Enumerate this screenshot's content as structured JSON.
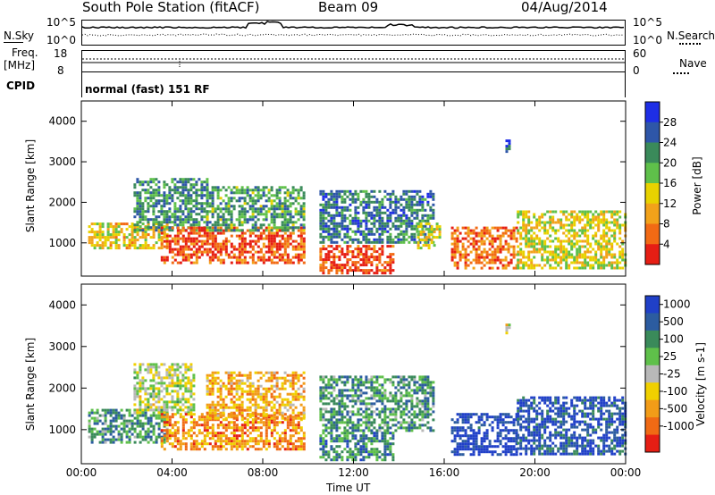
{
  "header": {
    "station": "South Pole Station (fitACF)",
    "beam": "Beam 09",
    "date": "04/Aug/2014"
  },
  "upper_panels": {
    "nsky_label": "N.Sky",
    "nsearch_label": "N.Search",
    "freq_label_1": "Freq.",
    "freq_label_2": "[MHz]",
    "nave_label": "Nave",
    "cpid_label": "CPID",
    "cpid_text": "normal (fast) 151 RF",
    "nsky_ticks": {
      "top": "10^5",
      "bottom": "10^0"
    },
    "nsearch_ticks": {
      "top": "10^5",
      "bottom": "10^0"
    },
    "freq_ticks": {
      "top": "18",
      "bottom": "8"
    },
    "nave_ticks": {
      "top": "60",
      "bottom": "0"
    }
  },
  "xaxis": {
    "title": "Time UT",
    "ticks": [
      "00:00",
      "04:00",
      "08:00",
      "12:00",
      "16:00",
      "20:00",
      "00:00"
    ]
  },
  "colors": {
    "power_scale": [
      "#1e2ee6",
      "#2e56a8",
      "#3a8a5a",
      "#5fc04a",
      "#e8d200",
      "#f2a21a",
      "#f26a14",
      "#e61e14"
    ],
    "velocity_scale": [
      "#2040c8",
      "#2c5ca0",
      "#3a8a5a",
      "#5fc04a",
      "#b8b8b8",
      "#f0d000",
      "#f29c18",
      "#f06a14",
      "#e61e14"
    ]
  },
  "chart_data": [
    {
      "type": "heatmap",
      "title": "",
      "xlabel": "Time UT",
      "ylabel": "Slant Range [km]",
      "xlim": [
        "00:00",
        "24:00"
      ],
      "ylim": [
        180,
        4500
      ],
      "yticks": [
        "1000",
        "2000",
        "3000",
        "4000"
      ],
      "colorbar": {
        "label": "Power [dB]",
        "ticks": [
          "4",
          "8",
          "12",
          "16",
          "20",
          "24",
          "28"
        ]
      },
      "regions": [
        {
          "t0": 0.3,
          "t1": 3.8,
          "r0": 900,
          "r1": 1500,
          "level": 0.6
        },
        {
          "t0": 2.3,
          "t1": 5.5,
          "r0": 1300,
          "r1": 2600,
          "level": 0.3
        },
        {
          "t0": 3.5,
          "t1": 9.8,
          "r0": 500,
          "r1": 1400,
          "level": 0.85
        },
        {
          "t0": 5.5,
          "t1": 9.8,
          "r0": 1300,
          "r1": 2400,
          "level": 0.35
        },
        {
          "t0": 10.5,
          "t1": 13.8,
          "r0": 250,
          "r1": 950,
          "level": 0.9
        },
        {
          "t0": 10.5,
          "t1": 15.5,
          "r0": 1000,
          "r1": 2300,
          "level": 0.25
        },
        {
          "t0": 14.8,
          "t1": 15.8,
          "r0": 900,
          "r1": 1500,
          "level": 0.55
        },
        {
          "t0": 16.3,
          "t1": 19.2,
          "r0": 400,
          "r1": 1400,
          "level": 0.8
        },
        {
          "t0": 19.2,
          "t1": 24.0,
          "r0": 400,
          "r1": 1800,
          "level": 0.55
        },
        {
          "t0": 18.7,
          "t1": 18.9,
          "r0": 3250,
          "r1": 3550,
          "level": 0.2
        }
      ]
    },
    {
      "type": "heatmap",
      "title": "",
      "xlabel": "Time UT",
      "ylabel": "Slant Range [km]",
      "xlim": [
        "00:00",
        "24:00"
      ],
      "ylim": [
        180,
        4500
      ],
      "yticks": [
        "1000",
        "2000",
        "3000",
        "4000"
      ],
      "colorbar": {
        "label": "Velocity [m s-1]",
        "ticks": [
          "1000",
          "500",
          "100",
          "25",
          "-25",
          "-100",
          "-500",
          "-1000"
        ]
      },
      "regions": [
        {
          "t0": 0.3,
          "t1": 3.8,
          "r0": 700,
          "r1": 1500,
          "level": 0.3
        },
        {
          "t0": 2.3,
          "t1": 5.0,
          "r0": 1400,
          "r1": 2600,
          "level": 0.5
        },
        {
          "t0": 3.5,
          "t1": 9.8,
          "r0": 500,
          "r1": 1400,
          "level": 0.75
        },
        {
          "t0": 5.5,
          "t1": 9.8,
          "r0": 1300,
          "r1": 2400,
          "level": 0.7
        },
        {
          "t0": 10.5,
          "t1": 13.8,
          "r0": 250,
          "r1": 950,
          "level": 0.25
        },
        {
          "t0": 10.5,
          "t1": 15.5,
          "r0": 1000,
          "r1": 2300,
          "level": 0.3
        },
        {
          "t0": 16.3,
          "t1": 19.2,
          "r0": 400,
          "r1": 1400,
          "level": 0.05
        },
        {
          "t0": 19.2,
          "t1": 24.0,
          "r0": 400,
          "r1": 1800,
          "level": 0.1
        },
        {
          "t0": 18.7,
          "t1": 18.9,
          "r0": 3250,
          "r1": 3550,
          "level": 0.6
        }
      ]
    }
  ]
}
